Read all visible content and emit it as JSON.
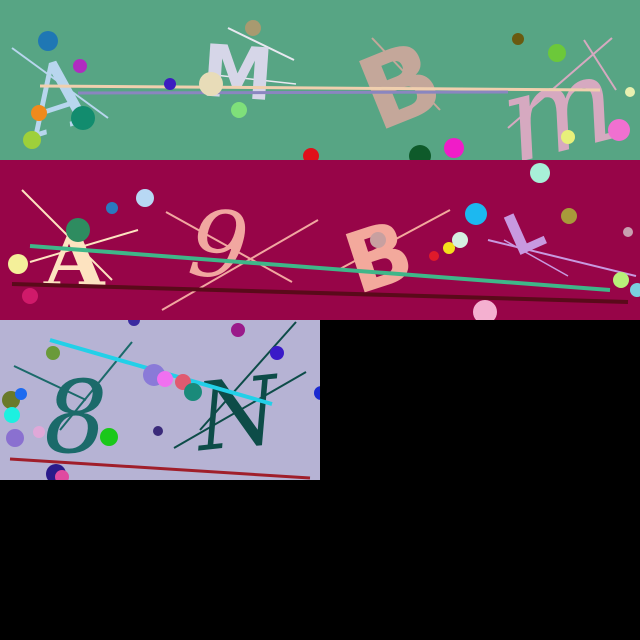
{
  "canvas": {
    "background": "#000000"
  },
  "panels": [
    {
      "id": "top",
      "background": "#57a584",
      "characters": [
        "A",
        "M",
        "B",
        "m"
      ]
    },
    {
      "id": "middle",
      "background": "#970548",
      "characters": [
        "A",
        "9",
        "B",
        "L"
      ]
    },
    {
      "id": "bottom",
      "background": "#b6b3d4",
      "characters": [
        "8",
        "N"
      ]
    }
  ],
  "colors": {
    "top_glyphs": [
      "#b8d6ee",
      "#d6d6e8",
      "#c4a79a",
      "#d6a9c0"
    ],
    "middle_glyphs": [
      "#fde3c0",
      "#f1a7a0",
      "#f3a99c",
      "#c899e0"
    ],
    "bottom_glyphs": [
      "#1b6a6a",
      "#0d4c48"
    ]
  }
}
